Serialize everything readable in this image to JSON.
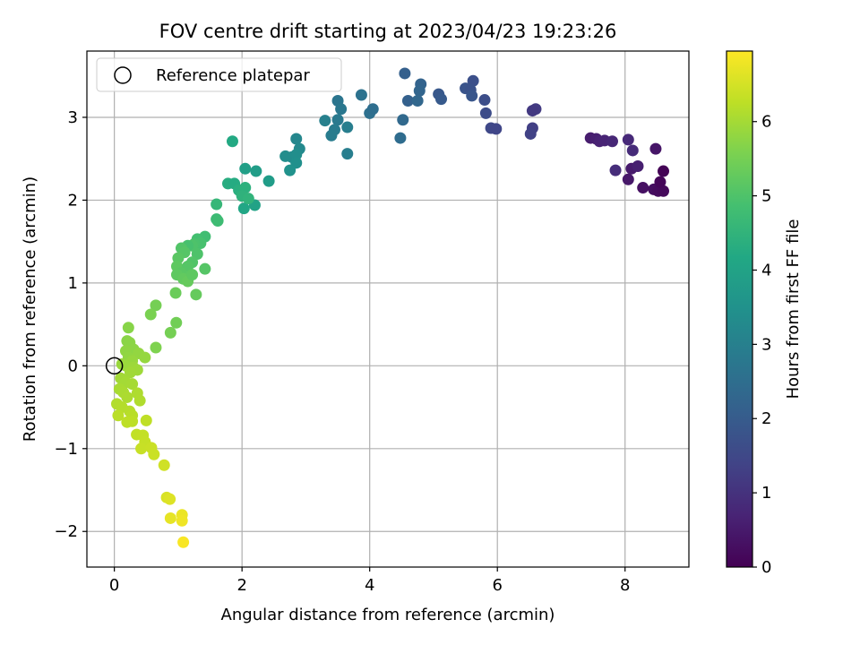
{
  "chart_data": {
    "type": "scatter",
    "title": "FOV centre drift starting at 2023/04/23 19:23:26",
    "xlabel": "Angular distance from reference (arcmin)",
    "ylabel": "Rotation from reference (arcmin)",
    "xlim": [
      -0.43,
      9.0
    ],
    "ylim": [
      -2.43,
      3.8
    ],
    "xticks": [
      0,
      2,
      4,
      6,
      8
    ],
    "yticks": [
      -2,
      -1,
      0,
      1,
      2,
      3
    ],
    "xtick_labels": [
      "0",
      "2",
      "4",
      "6",
      "8"
    ],
    "ytick_labels": [
      "−2",
      "−1",
      "0",
      "1",
      "2",
      "3"
    ],
    "grid": true,
    "legend": {
      "position": "top-left",
      "entries": [
        "Reference platepar"
      ]
    },
    "reference_point": {
      "x": 0,
      "y": 0,
      "label": "Reference platepar"
    },
    "colorbar": {
      "label": "Hours from first FF file",
      "colormap": "viridis",
      "range": [
        0,
        6.95
      ],
      "ticks": [
        0,
        1,
        2,
        3,
        4,
        5,
        6
      ],
      "tick_labels": [
        "0",
        "1",
        "2",
        "3",
        "4",
        "5",
        "6"
      ]
    },
    "points": [
      [
        7.46,
        2.75,
        0.55
      ],
      [
        7.55,
        2.74,
        0.6
      ],
      [
        7.6,
        2.71,
        0.65
      ],
      [
        7.68,
        2.72,
        0.7
      ],
      [
        7.8,
        2.71,
        0.75
      ],
      [
        8.05,
        2.73,
        0.8
      ],
      [
        8.12,
        2.6,
        0.85
      ],
      [
        8.48,
        2.62,
        0.4
      ],
      [
        8.1,
        2.38,
        0.5
      ],
      [
        7.85,
        2.36,
        0.9
      ],
      [
        8.2,
        2.41,
        0.6
      ],
      [
        8.05,
        2.25,
        0.45
      ],
      [
        8.28,
        2.15,
        0.3
      ],
      [
        8.45,
        2.13,
        0.25
      ],
      [
        8.52,
        2.11,
        0.2
      ],
      [
        8.6,
        2.11,
        0.15
      ],
      [
        8.55,
        2.22,
        0.1
      ],
      [
        8.6,
        2.35,
        0.05
      ],
      [
        6.6,
        3.1,
        1.2
      ],
      [
        6.55,
        3.08,
        1.15
      ],
      [
        6.55,
        2.87,
        1.3
      ],
      [
        6.52,
        2.8,
        1.35
      ],
      [
        5.9,
        2.87,
        1.5
      ],
      [
        5.98,
        2.86,
        1.45
      ],
      [
        5.82,
        3.05,
        1.6
      ],
      [
        5.8,
        3.21,
        1.65
      ],
      [
        5.62,
        3.44,
        1.7
      ],
      [
        5.5,
        3.35,
        1.8
      ],
      [
        5.58,
        3.33,
        1.75
      ],
      [
        5.6,
        3.26,
        1.85
      ],
      [
        5.08,
        3.28,
        1.9
      ],
      [
        5.12,
        3.22,
        1.95
      ],
      [
        4.55,
        3.53,
        2.1
      ],
      [
        4.6,
        3.2,
        2.15
      ],
      [
        4.8,
        3.4,
        2.2
      ],
      [
        4.78,
        3.32,
        2.25
      ],
      [
        4.75,
        3.2,
        2.3
      ],
      [
        4.52,
        2.97,
        2.35
      ],
      [
        4.48,
        2.75,
        2.45
      ],
      [
        4.0,
        3.05,
        2.55
      ],
      [
        4.05,
        3.1,
        2.5
      ],
      [
        3.87,
        3.27,
        2.6
      ],
      [
        3.5,
        3.2,
        2.7
      ],
      [
        3.55,
        3.1,
        2.75
      ],
      [
        3.5,
        2.97,
        2.8
      ],
      [
        3.45,
        2.85,
        2.85
      ],
      [
        3.4,
        2.78,
        2.9
      ],
      [
        3.65,
        2.88,
        2.95
      ],
      [
        3.3,
        2.96,
        3.0
      ],
      [
        3.65,
        2.56,
        2.95
      ],
      [
        2.85,
        2.74,
        3.2
      ],
      [
        2.9,
        2.62,
        3.25
      ],
      [
        2.78,
        2.52,
        3.3
      ],
      [
        2.68,
        2.53,
        3.35
      ],
      [
        2.85,
        2.55,
        3.4
      ],
      [
        2.85,
        2.45,
        3.45
      ],
      [
        2.75,
        2.36,
        3.5
      ],
      [
        1.85,
        2.71,
        4.2
      ],
      [
        2.05,
        2.38,
        3.9
      ],
      [
        2.22,
        2.35,
        3.85
      ],
      [
        2.42,
        2.23,
        3.8
      ],
      [
        2.2,
        1.94,
        4.0
      ],
      [
        2.03,
        1.9,
        4.1
      ],
      [
        1.78,
        2.2,
        4.3
      ],
      [
        1.88,
        2.2,
        4.25
      ],
      [
        1.95,
        2.12,
        4.35
      ],
      [
        2.05,
        2.15,
        4.4
      ],
      [
        2.0,
        2.05,
        4.45
      ],
      [
        2.1,
        2.02,
        4.5
      ],
      [
        1.6,
        1.95,
        4.6
      ],
      [
        1.6,
        1.77,
        4.7
      ],
      [
        1.62,
        1.75,
        4.75
      ],
      [
        1.42,
        1.56,
        4.8
      ],
      [
        1.3,
        1.53,
        4.85
      ],
      [
        1.35,
        1.48,
        4.9
      ],
      [
        1.25,
        1.47,
        4.95
      ],
      [
        1.22,
        1.45,
        5.0
      ],
      [
        1.15,
        1.45,
        4.9
      ],
      [
        1.05,
        1.42,
        5.05
      ],
      [
        1.1,
        1.37,
        5.1
      ],
      [
        1.0,
        1.3,
        5.15
      ],
      [
        0.98,
        1.2,
        5.2
      ],
      [
        1.3,
        1.35,
        5.0
      ],
      [
        1.22,
        1.25,
        5.05
      ],
      [
        1.15,
        1.2,
        5.1
      ],
      [
        1.05,
        1.12,
        5.15
      ],
      [
        0.98,
        1.1,
        5.2
      ],
      [
        1.08,
        1.05,
        5.25
      ],
      [
        1.15,
        1.02,
        5.3
      ],
      [
        1.22,
        1.1,
        5.2
      ],
      [
        1.42,
        1.17,
        5.1
      ],
      [
        1.28,
        0.86,
        5.3
      ],
      [
        0.96,
        0.88,
        5.35
      ],
      [
        0.97,
        0.52,
        5.45
      ],
      [
        0.88,
        0.4,
        5.5
      ],
      [
        0.65,
        0.73,
        5.5
      ],
      [
        0.57,
        0.62,
        5.55
      ],
      [
        0.65,
        0.22,
        5.6
      ],
      [
        0.22,
        0.46,
        5.7
      ],
      [
        0.2,
        0.3,
        5.72
      ],
      [
        0.24,
        0.28,
        5.74
      ],
      [
        0.3,
        0.2,
        5.76
      ],
      [
        0.18,
        0.18,
        5.78
      ],
      [
        0.22,
        0.1,
        5.8
      ],
      [
        0.38,
        0.15,
        5.82
      ],
      [
        0.48,
        0.1,
        5.84
      ],
      [
        0.28,
        0.06,
        5.86
      ],
      [
        0.12,
        0.02,
        5.88
      ],
      [
        0.18,
        0.0,
        5.9
      ],
      [
        0.3,
        -0.02,
        5.92
      ],
      [
        0.36,
        -0.05,
        5.94
      ],
      [
        0.25,
        -0.08,
        5.96
      ],
      [
        0.1,
        -0.15,
        5.98
      ],
      [
        0.18,
        -0.2,
        6.0
      ],
      [
        0.28,
        -0.22,
        6.02
      ],
      [
        0.08,
        -0.28,
        6.04
      ],
      [
        0.14,
        -0.32,
        6.06
      ],
      [
        0.2,
        -0.38,
        6.08
      ],
      [
        0.36,
        -0.33,
        6.1
      ],
      [
        0.4,
        -0.42,
        6.12
      ],
      [
        0.04,
        -0.46,
        6.14
      ],
      [
        0.12,
        -0.5,
        6.16
      ],
      [
        0.24,
        -0.55,
        6.18
      ],
      [
        0.28,
        -0.6,
        6.2
      ],
      [
        0.06,
        -0.6,
        6.22
      ],
      [
        0.28,
        -0.67,
        6.24
      ],
      [
        0.2,
        -0.68,
        6.26
      ],
      [
        0.5,
        -0.66,
        6.28
      ],
      [
        0.35,
        -0.83,
        6.3
      ],
      [
        0.45,
        -0.84,
        6.32
      ],
      [
        0.48,
        -0.92,
        6.34
      ],
      [
        0.42,
        -1.0,
        6.36
      ],
      [
        0.58,
        -0.99,
        6.38
      ],
      [
        0.62,
        -1.07,
        6.4
      ],
      [
        0.78,
        -1.2,
        6.45
      ],
      [
        0.82,
        -1.59,
        6.55
      ],
      [
        0.87,
        -1.61,
        6.6
      ],
      [
        0.88,
        -1.84,
        6.7
      ],
      [
        1.06,
        -1.8,
        6.75
      ],
      [
        1.06,
        -1.87,
        6.8
      ],
      [
        1.08,
        -2.13,
        6.9
      ]
    ]
  }
}
